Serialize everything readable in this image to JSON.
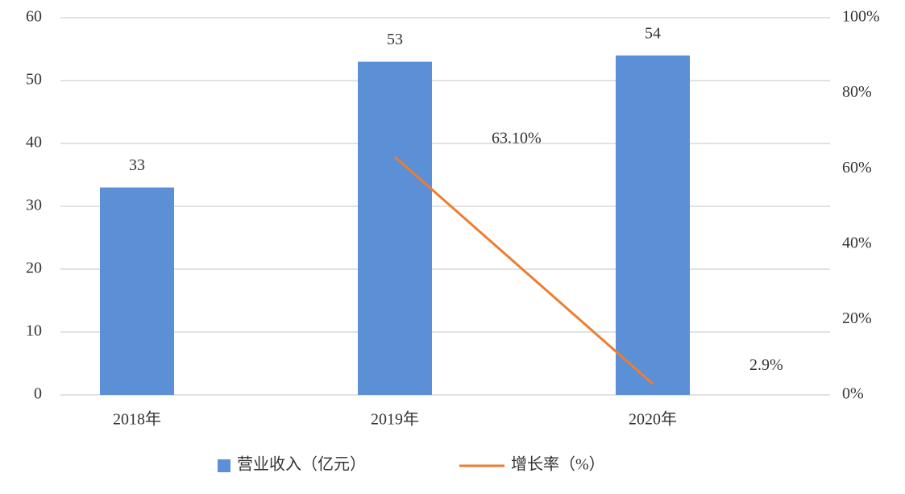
{
  "chart_data": {
    "type": "bar",
    "categories": [
      "2018年",
      "2019年",
      "2020年"
    ],
    "series": [
      {
        "name": "营业收入（亿元）",
        "type": "bar",
        "color": "#5b8fd6",
        "values": [
          33,
          53,
          54
        ]
      },
      {
        "name": "增长率（%）",
        "type": "line",
        "axis": "y2",
        "color": "#ed7d31",
        "values": [
          null,
          63.1,
          2.9
        ],
        "value_labels": [
          null,
          "63.10%",
          "2.9%"
        ]
      }
    ],
    "ylim": [
      0,
      60
    ],
    "yticks": [
      0,
      10,
      20,
      30,
      40,
      50,
      60
    ],
    "y2lim": [
      0,
      100
    ],
    "y2ticks": [
      {
        "value": 0,
        "label": "0%"
      },
      {
        "value": 20,
        "label": "20%"
      },
      {
        "value": 40,
        "label": "40%"
      },
      {
        "value": 60,
        "label": "60%"
      },
      {
        "value": 80,
        "label": "80%"
      },
      {
        "value": 100,
        "label": "100%"
      }
    ],
    "grid": true,
    "legend": "bottom"
  }
}
